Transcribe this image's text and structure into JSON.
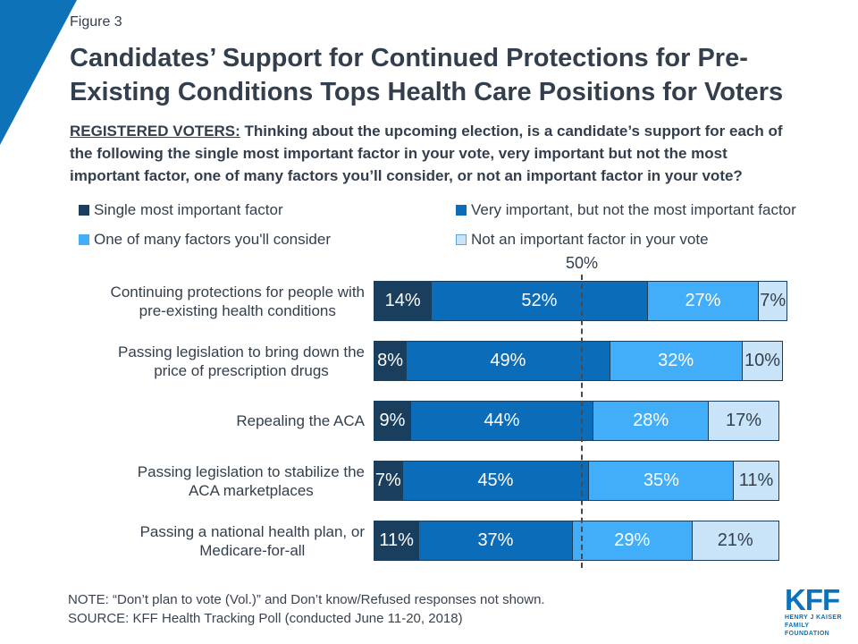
{
  "figure_label": "Figure 3",
  "title": {
    "lines": [
      "Candidates’ Support for Continued Protections for Pre-",
      "Existing Conditions Tops Health Care Positions for Voters"
    ]
  },
  "subtitle": {
    "lead": "REGISTERED VOTERS:",
    "rest": " Thinking about the upcoming election, is a candidate’s support for each of the following the single most important factor in your vote, very important but not the most important factor, one of many factors you’ll consider, or not an important factor in your vote?"
  },
  "legend": [
    {
      "label": "Single most important factor",
      "color": "#1A3E5D",
      "pale": false
    },
    {
      "label": "Very important, but not the most important factor",
      "color": "#0B6CB9",
      "pale": false
    },
    {
      "label": "One of many factors you'll consider",
      "color": "#42ADF8",
      "pale": false
    },
    {
      "label": "Not an important factor in your vote",
      "color": "#C9E4F8",
      "pale": true
    }
  ],
  "chart_data": {
    "type": "bar",
    "orientation": "horizontal",
    "stacked": true,
    "xlim": [
      0,
      100
    ],
    "unit": "%",
    "reference_line": {
      "value": 50,
      "label": "50%"
    },
    "categories": [
      "Continuing protections for people with pre-existing health conditions",
      "Passing legislation to bring down the price of prescription drugs",
      "Repealing the ACA",
      "Passing legislation to stabilize the ACA marketplaces",
      "Passing a national health plan, or Medicare-for-all"
    ],
    "category_wrap": [
      [
        "Continuing protections for people with",
        "pre-existing health conditions"
      ],
      [
        "Passing legislation to bring down the",
        "price of prescription drugs"
      ],
      [
        "Repealing the ACA"
      ],
      [
        "Passing legislation to stabilize the",
        "ACA marketplaces"
      ],
      [
        "Passing a national health plan, or",
        "Medicare-for-all"
      ]
    ],
    "series": [
      {
        "name": "Single most important factor",
        "color": "#1A3E5D",
        "text_color": "#ffffff",
        "values": [
          14,
          8,
          9,
          7,
          11
        ]
      },
      {
        "name": "Very important, but not the most important factor",
        "color": "#0B6CB9",
        "text_color": "#ffffff",
        "values": [
          52,
          49,
          44,
          45,
          37
        ]
      },
      {
        "name": "One of many factors you'll consider",
        "color": "#42ADF8",
        "text_color": "#ffffff",
        "values": [
          27,
          32,
          28,
          35,
          29
        ]
      },
      {
        "name": "Not an important factor in your vote",
        "color": "#C9E4F8",
        "text_color": "#333F4D",
        "values": [
          7,
          10,
          17,
          11,
          21
        ]
      }
    ]
  },
  "footer": {
    "note": "NOTE: “Don’t plan to vote (Vol.)” and Don’t know/Refused responses not shown.",
    "source": "SOURCE: KFF Health Tracking Poll (conducted June 11-20, 2018)"
  },
  "logo": {
    "kff": "KFF",
    "sub_line1": "HENRY J KAISER",
    "sub_line2": "FAMILY FOUNDATION"
  },
  "colors": {
    "brand_blue": "#0D72B8",
    "title_text": "#333F4D",
    "bar_border": "#1A3E5D",
    "reference_line": "#4A4A4A"
  }
}
